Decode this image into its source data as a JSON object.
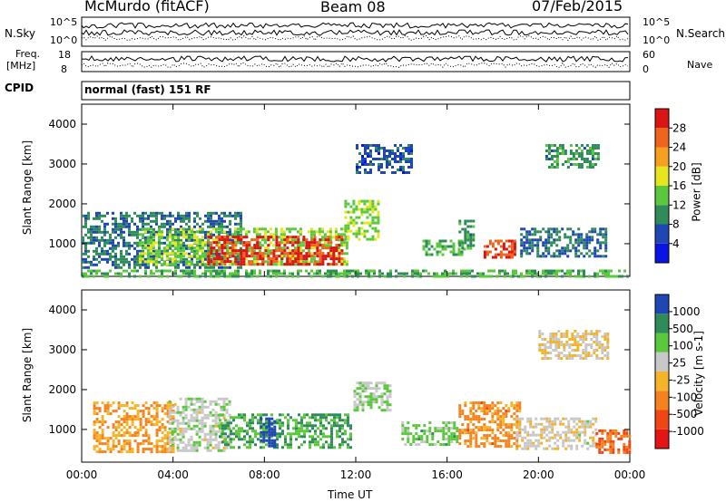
{
  "header": {
    "station": "McMurdo (fitACF)",
    "beam": "Beam 08",
    "date": "07/Feb/2015"
  },
  "strip_panels": {
    "nsky_label": "N.Sky",
    "nsearch_label": "N.Search",
    "nsky_ticks": [
      "10^5",
      "10^0"
    ],
    "nsearch_ticks": [
      "10^5",
      "10^0"
    ],
    "freq_label_top": "Freq.",
    "freq_label_bottom": "[MHz]",
    "freq_ticks": [
      "18",
      "8"
    ],
    "nave_label": "Nave",
    "nave_ticks": [
      "60",
      "0"
    ],
    "cpid_label": "CPID",
    "cpid_value": "normal (fast) 151 RF"
  },
  "colors": {
    "power_scale": [
      "#0a14e6",
      "#1e46b4",
      "#2f8c5a",
      "#5ac83c",
      "#e6e61e",
      "#f5a01e",
      "#f0641e",
      "#dc1414"
    ],
    "velocity_scale": [
      "#e61414",
      "#f04614",
      "#f5821e",
      "#f5b428",
      "#c8c8c8",
      "#5ac83c",
      "#2f8c5a",
      "#1e46b4"
    ]
  },
  "chart_data": [
    {
      "type": "heatmap",
      "title": "",
      "ylabel": "Slant Range [km]",
      "xlabel": "",
      "x_ticks": [
        "00:00",
        "04:00",
        "08:00",
        "12:00",
        "16:00",
        "20:00",
        "00:00"
      ],
      "y_ticks": [
        1000,
        2000,
        3000,
        4000
      ],
      "ylim": [
        180,
        4500
      ],
      "xlim_hours": [
        0,
        24
      ],
      "colorbar": {
        "label": "Power [dB]",
        "ticks": [
          "4",
          "8",
          "12",
          "16",
          "20",
          "24",
          "28"
        ],
        "range": [
          0,
          30
        ]
      },
      "regions": [
        {
          "t0": 0.0,
          "t1": 7.0,
          "r0": 400,
          "r1": 1800,
          "value": 8
        },
        {
          "t0": 2.5,
          "t1": 11.6,
          "r0": 450,
          "r1": 1400,
          "value": 14
        },
        {
          "t0": 5.5,
          "t1": 11.4,
          "r0": 500,
          "r1": 1200,
          "value": 27
        },
        {
          "t0": 11.5,
          "t1": 13.0,
          "r0": 1100,
          "r1": 2100,
          "value": 14
        },
        {
          "t0": 12.0,
          "t1": 14.5,
          "r0": 2800,
          "r1": 3500,
          "value": 6
        },
        {
          "t0": 14.8,
          "t1": 16.8,
          "r0": 700,
          "r1": 1100,
          "value": 12
        },
        {
          "t0": 16.5,
          "t1": 17.2,
          "r0": 900,
          "r1": 1600,
          "value": 10
        },
        {
          "t0": 17.6,
          "t1": 19.0,
          "r0": 650,
          "r1": 1100,
          "value": 26
        },
        {
          "t0": 19.2,
          "t1": 23.0,
          "r0": 700,
          "r1": 1400,
          "value": 8
        },
        {
          "t0": 20.3,
          "t1": 22.6,
          "r0": 2950,
          "r1": 3500,
          "value": 10
        },
        {
          "t0": 0.0,
          "t1": 24.0,
          "r0": 200,
          "r1": 350,
          "value": 12
        }
      ]
    },
    {
      "type": "heatmap",
      "title": "",
      "ylabel": "Slant Range [km]",
      "xlabel": "Time UT",
      "x_ticks": [
        "00:00",
        "04:00",
        "08:00",
        "12:00",
        "16:00",
        "20:00",
        "00:00"
      ],
      "y_ticks": [
        1000,
        2000,
        3000,
        4000
      ],
      "ylim": [
        180,
        4500
      ],
      "xlim_hours": [
        0,
        24
      ],
      "colorbar": {
        "label": "Velocity [m s-1]",
        "ticks": [
          "-1000",
          "-500",
          "-100",
          "-25",
          "25",
          "100",
          "500",
          "1000"
        ],
        "range": [
          -1200,
          1200
        ]
      },
      "regions": [
        {
          "t0": 0.5,
          "t1": 4.0,
          "r0": 450,
          "r1": 1700,
          "value": -300
        },
        {
          "t0": 3.8,
          "t1": 6.5,
          "r0": 500,
          "r1": 1800,
          "value": 200
        },
        {
          "t0": 6.0,
          "t1": 11.8,
          "r0": 550,
          "r1": 1400,
          "value": 600
        },
        {
          "t0": 7.8,
          "t1": 8.4,
          "r0": 600,
          "r1": 1300,
          "value": 1100
        },
        {
          "t0": 11.9,
          "t1": 13.5,
          "r0": 1500,
          "r1": 2200,
          "value": 300
        },
        {
          "t0": 14.0,
          "t1": 16.5,
          "r0": 600,
          "r1": 1200,
          "value": 400
        },
        {
          "t0": 16.5,
          "t1": 19.2,
          "r0": 600,
          "r1": 1700,
          "value": -400
        },
        {
          "t0": 19.0,
          "t1": 22.5,
          "r0": 500,
          "r1": 1300,
          "value": 100
        },
        {
          "t0": 20.0,
          "t1": 23.0,
          "r0": 2750,
          "r1": 3500,
          "value": 0
        },
        {
          "t0": 22.5,
          "t1": 24.0,
          "r0": 400,
          "r1": 1000,
          "value": -600
        }
      ]
    }
  ]
}
